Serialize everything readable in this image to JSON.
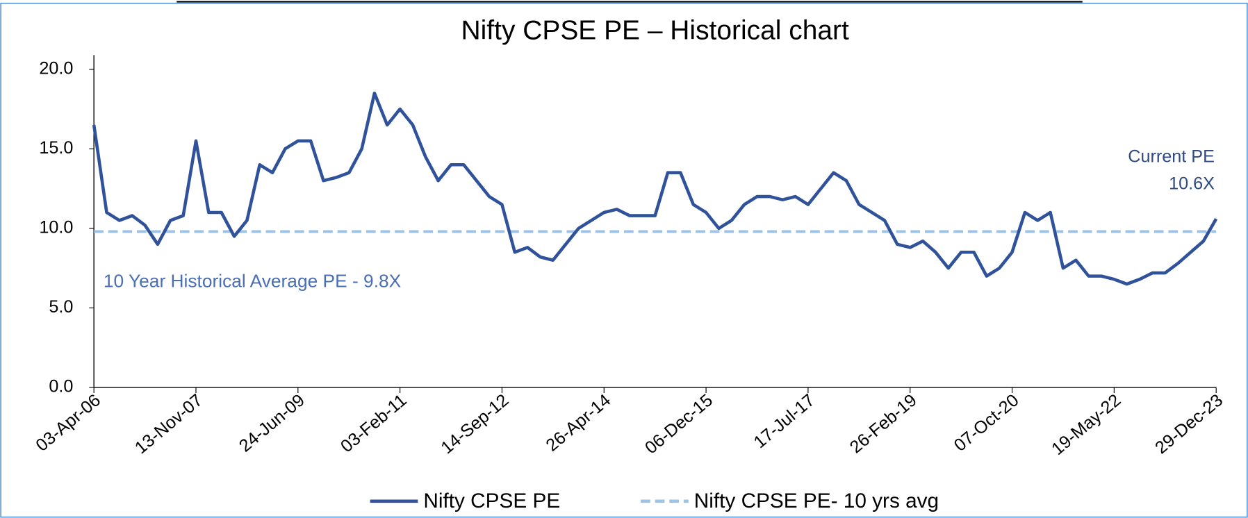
{
  "chart_data": {
    "type": "line",
    "title": "Nifty CPSE PE – Historical chart",
    "categories": [
      "03-Apr-06",
      null,
      null,
      null,
      null,
      null,
      null,
      null,
      "13-Nov-07",
      null,
      null,
      null,
      null,
      null,
      null,
      null,
      "24-Jun-09",
      null,
      null,
      null,
      null,
      null,
      null,
      null,
      "03-Feb-11",
      null,
      null,
      null,
      null,
      null,
      null,
      null,
      "14-Sep-12",
      null,
      null,
      null,
      null,
      null,
      null,
      null,
      "26-Apr-14",
      null,
      null,
      null,
      null,
      null,
      null,
      null,
      "06-Dec-15",
      null,
      null,
      null,
      null,
      null,
      null,
      null,
      "17-Jul-17",
      null,
      null,
      null,
      null,
      null,
      null,
      null,
      "26-Feb-19",
      null,
      null,
      null,
      null,
      null,
      null,
      null,
      "07-Oct-20",
      null,
      null,
      null,
      null,
      null,
      null,
      null,
      "19-May-22",
      null,
      null,
      null,
      null,
      null,
      null,
      null,
      "29-Dec-23"
    ],
    "series": [
      {
        "name": "Nifty CPSE PE",
        "color": "#2f529a",
        "dash": false,
        "values": [
          16.5,
          11,
          10.5,
          10.8,
          10.2,
          9.0,
          10.5,
          10.8,
          15.5,
          11,
          11,
          9.5,
          10.5,
          14,
          13.5,
          15,
          15.5,
          15.5,
          13,
          13.2,
          13.5,
          15,
          18.5,
          16.5,
          17.5,
          16.5,
          14.5,
          13,
          14,
          14,
          13,
          12,
          11.5,
          8.5,
          8.8,
          8.2,
          8.0,
          9.0,
          10.0,
          10.5,
          11,
          11.2,
          10.8,
          10.8,
          10.8,
          13.5,
          13.5,
          11.5,
          11.0,
          10,
          10.5,
          11.5,
          12,
          12,
          11.8,
          12,
          11.5,
          12.5,
          13.5,
          13,
          11.5,
          11,
          10.5,
          9,
          8.8,
          9.2,
          8.5,
          7.5,
          8.5,
          8.5,
          7.0,
          7.5,
          8.5,
          11,
          10.5,
          11,
          7.5,
          8,
          7,
          7,
          6.8,
          6.5,
          6.8,
          7.2,
          7.2,
          7.8,
          8.5,
          9.2,
          10.6
        ]
      },
      {
        "name": "Nifty CPSE PE- 10 yrs avg",
        "color": "#9dc3e6",
        "dash": true,
        "values": [
          9.8,
          9.8,
          9.8,
          9.8,
          9.8,
          9.8,
          9.8,
          9.8,
          9.8,
          9.8,
          9.8,
          9.8,
          9.8,
          9.8,
          9.8,
          9.8,
          9.8,
          9.8,
          9.8,
          9.8,
          9.8,
          9.8,
          9.8,
          9.8,
          9.8,
          9.8,
          9.8,
          9.8,
          9.8,
          9.8,
          9.8,
          9.8,
          9.8,
          9.8,
          9.8,
          9.8,
          9.8,
          9.8,
          9.8,
          9.8,
          9.8,
          9.8,
          9.8,
          9.8,
          9.8,
          9.8,
          9.8,
          9.8,
          9.8,
          9.8,
          9.8,
          9.8,
          9.8,
          9.8,
          9.8,
          9.8,
          9.8,
          9.8,
          9.8,
          9.8,
          9.8,
          9.8,
          9.8,
          9.8,
          9.8,
          9.8,
          9.8,
          9.8,
          9.8,
          9.8,
          9.8,
          9.8,
          9.8,
          9.8,
          9.8,
          9.8,
          9.8,
          9.8,
          9.8,
          9.8,
          9.8,
          9.8,
          9.8,
          9.8,
          9.8,
          9.8,
          9.8,
          9.8,
          9.8
        ]
      }
    ],
    "ylim": [
      0,
      20.9
    ],
    "yticks": [
      {
        "value": 0,
        "label": "0.0"
      },
      {
        "value": 5,
        "label": "5.0"
      },
      {
        "value": 10,
        "label": "10.0"
      },
      {
        "value": 15,
        "label": "15.0"
      },
      {
        "value": 20,
        "label": "20.0"
      }
    ],
    "grid": false,
    "legend": "bottom",
    "annotations": [
      "10 Year Historical Average PE - 9.8X",
      "Current PE",
      "10.6X"
    ]
  }
}
